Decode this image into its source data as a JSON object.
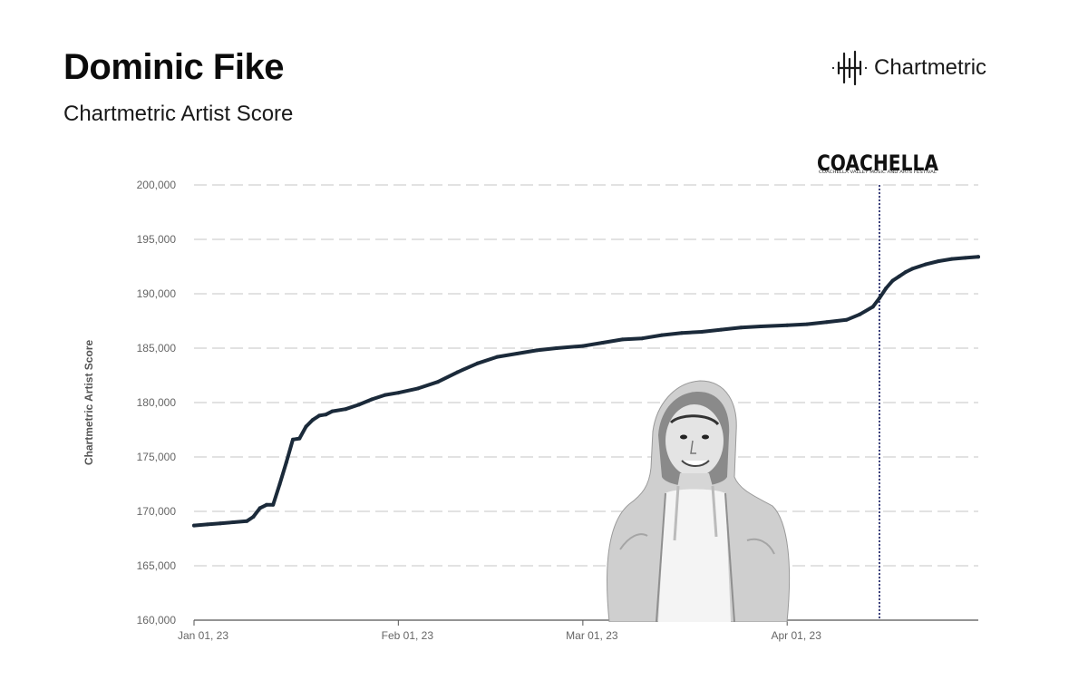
{
  "header": {
    "title": "Dominic Fike",
    "subtitle": "Chartmetric Artist Score"
  },
  "brand": {
    "name": "Chartmetric",
    "icon": "waveform-logo-icon"
  },
  "colors": {
    "line": "#1b2a3a",
    "grid": "#d9d9d9",
    "event_line": "#2a2f6e"
  },
  "chart_data": {
    "type": "line",
    "ylabel": "Chartmetric Artist Score",
    "ylim": [
      160000,
      200000
    ],
    "yticks": [
      160000,
      165000,
      170000,
      175000,
      180000,
      185000,
      190000,
      195000,
      200000
    ],
    "ytick_labels": [
      "160,000",
      "165,000",
      "170,000",
      "175,000",
      "180,000",
      "185,000",
      "190,000",
      "195,000",
      "200,000"
    ],
    "xlim": [
      "2023-01-01",
      "2023-04-30"
    ],
    "xticks": [
      "2023-01-01",
      "2023-02-01",
      "2023-03-01",
      "2023-04-01"
    ],
    "xtick_labels": [
      "Jan 01, 23",
      "Feb 01, 23",
      "Mar 01, 23",
      "Apr 01, 23"
    ],
    "grid": true,
    "series": [
      {
        "x": [
          "2023-01-01",
          "2023-01-03",
          "2023-01-05",
          "2023-01-07",
          "2023-01-09",
          "2023-01-10",
          "2023-01-11",
          "2023-01-12",
          "2023-01-13",
          "2023-01-14",
          "2023-01-15",
          "2023-01-16",
          "2023-01-17",
          "2023-01-18",
          "2023-01-19",
          "2023-01-20",
          "2023-01-21",
          "2023-01-22",
          "2023-01-24",
          "2023-01-26",
          "2023-01-28",
          "2023-01-30",
          "2023-02-01",
          "2023-02-04",
          "2023-02-07",
          "2023-02-10",
          "2023-02-13",
          "2023-02-16",
          "2023-02-19",
          "2023-02-22",
          "2023-02-25",
          "2023-03-01",
          "2023-03-04",
          "2023-03-07",
          "2023-03-10",
          "2023-03-13",
          "2023-03-16",
          "2023-03-19",
          "2023-03-22",
          "2023-03-25",
          "2023-03-28",
          "2023-04-01",
          "2023-04-04",
          "2023-04-07",
          "2023-04-10",
          "2023-04-12",
          "2023-04-14",
          "2023-04-15",
          "2023-04-16",
          "2023-04-17",
          "2023-04-18",
          "2023-04-19",
          "2023-04-20",
          "2023-04-22",
          "2023-04-24",
          "2023-04-26",
          "2023-04-28",
          "2023-04-30"
        ],
        "values": [
          168700,
          168800,
          168900,
          169000,
          169100,
          169500,
          170300,
          170600,
          170600,
          172500,
          174500,
          176600,
          176700,
          177800,
          178400,
          178800,
          178900,
          179200,
          179400,
          179800,
          180300,
          180700,
          180900,
          181300,
          181900,
          182800,
          183600,
          184200,
          184500,
          184800,
          185000,
          185200,
          185500,
          185800,
          185900,
          186200,
          186400,
          186500,
          186700,
          186900,
          187000,
          187100,
          187200,
          187400,
          187600,
          188100,
          188800,
          189600,
          190500,
          191200,
          191600,
          192000,
          192300,
          192700,
          193000,
          193200,
          193300,
          193400
        ]
      }
    ],
    "annotations": [
      {
        "date": "2023-04-15",
        "label": "COACHELLA",
        "sublabel": "COACHELLA VALLEY MUSIC AND ARTS FESTIVAL"
      }
    ]
  }
}
